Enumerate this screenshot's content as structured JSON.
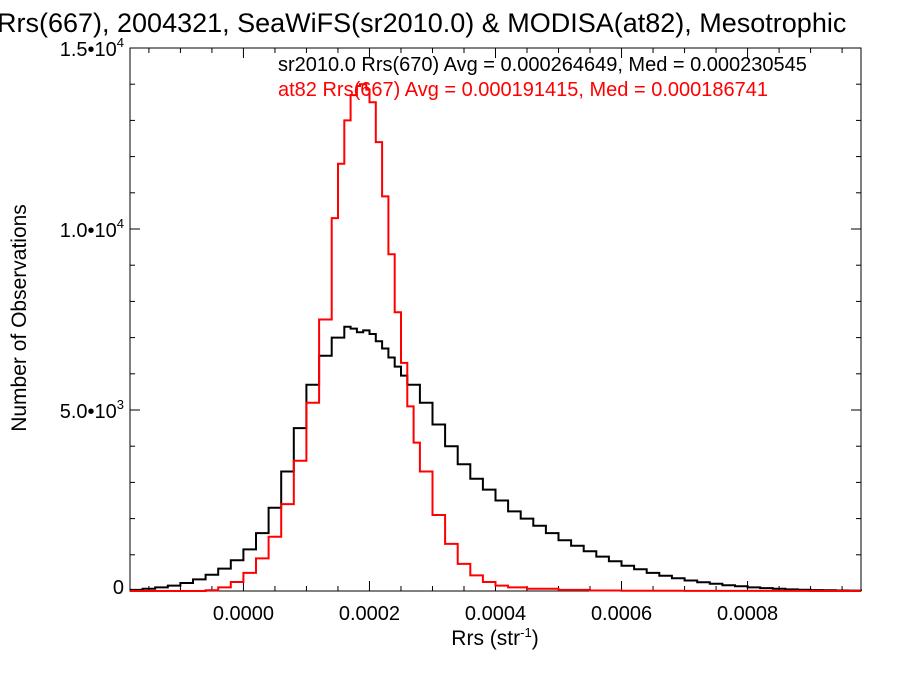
{
  "chart_data": {
    "type": "line",
    "step": true,
    "title": "Rrs(667), 2004321, SeaWiFS(sr2010.0) & MODISA(at82), Mesotrophic",
    "xlabel": "Rrs (str",
    "xlabel_sup": "-1",
    "xlabel_end": ")",
    "ylabel": "Number of Observations",
    "xlim": [
      -0.00018,
      0.00098
    ],
    "ylim": [
      0,
      15000
    ],
    "x_ticks": [
      {
        "value": 0.0,
        "label": "0.0000"
      },
      {
        "value": 0.0002,
        "label": "0.0002"
      },
      {
        "value": 0.0004,
        "label": "0.0004"
      },
      {
        "value": 0.0006,
        "label": "0.0006"
      },
      {
        "value": 0.0008,
        "label": "0.0008"
      }
    ],
    "x_minor_step": 5e-05,
    "y_ticks": [
      {
        "value": 0,
        "mant": "0",
        "exp": ""
      },
      {
        "value": 5000,
        "mant": "5.0•10",
        "exp": "3"
      },
      {
        "value": 10000,
        "mant": "1.0•10",
        "exp": "4"
      },
      {
        "value": 15000,
        "mant": "1.5•10",
        "exp": "4"
      }
    ],
    "y_minor_step": 1000,
    "annotations": [
      {
        "text": "sr2010.0 Rrs(670) Avg = 0.000264649, Med = 0.000230545",
        "color": "#000000"
      },
      {
        "text": "at82 Rrs(667) Avg = 0.000191415, Med = 0.000186741",
        "color": "#ff0000"
      }
    ],
    "series": [
      {
        "color": "#000000",
        "x": [
          -0.00018,
          -0.00016,
          -0.00014,
          -0.00012,
          -0.0001,
          -8e-05,
          -6e-05,
          -4e-05,
          -2e-05,
          0.0,
          2e-05,
          4e-05,
          6e-05,
          8e-05,
          0.0001,
          0.00012,
          0.00014,
          0.00016,
          0.00017,
          0.00018,
          0.00019,
          0.0002,
          0.00021,
          0.00022,
          0.00023,
          0.00024,
          0.00025,
          0.00026,
          0.00028,
          0.0003,
          0.00032,
          0.00034,
          0.00036,
          0.00038,
          0.0004,
          0.00042,
          0.00044,
          0.00046,
          0.00048,
          0.0005,
          0.00052,
          0.00054,
          0.00056,
          0.00058,
          0.0006,
          0.00062,
          0.00064,
          0.00066,
          0.00068,
          0.0007,
          0.00072,
          0.00074,
          0.00076,
          0.00078,
          0.0008,
          0.00082,
          0.00084,
          0.00086,
          0.00088,
          0.0009,
          0.00092,
          0.00094,
          0.00096,
          0.00098
        ],
        "y": [
          30,
          60,
          100,
          150,
          220,
          320,
          450,
          620,
          850,
          1150,
          1600,
          2300,
          3300,
          4500,
          5700,
          6500,
          7000,
          7300,
          7250,
          7150,
          7200,
          7100,
          6900,
          6700,
          6450,
          6200,
          5950,
          5700,
          5200,
          4600,
          4000,
          3500,
          3100,
          2800,
          2500,
          2200,
          2000,
          1800,
          1600,
          1400,
          1250,
          1100,
          950,
          820,
          700,
          600,
          500,
          420,
          350,
          290,
          240,
          200,
          160,
          130,
          100,
          80,
          60,
          45,
          35,
          25,
          20,
          15,
          10,
          8
        ]
      },
      {
        "color": "#ff0000",
        "x": [
          -0.00018,
          -0.00012,
          -8e-05,
          -6e-05,
          -4e-05,
          -2e-05,
          0.0,
          2e-05,
          4e-05,
          6e-05,
          8e-05,
          0.0001,
          0.00012,
          0.00014,
          0.00015,
          0.00016,
          0.00017,
          0.00018,
          0.000185,
          0.00019,
          0.000195,
          0.0002,
          0.00021,
          0.00022,
          0.00023,
          0.00024,
          0.00025,
          0.00026,
          0.00027,
          0.00028,
          0.0003,
          0.00032,
          0.00034,
          0.00036,
          0.00038,
          0.0004,
          0.00042,
          0.00045,
          0.0005,
          0.00055,
          0.0006,
          0.0007,
          0.0008,
          0.0009,
          0.00098
        ],
        "y": [
          0,
          0,
          0,
          20,
          100,
          250,
          500,
          900,
          1500,
          2400,
          3600,
          5200,
          7500,
          10300,
          11800,
          13000,
          13700,
          13950,
          14000,
          14000,
          13850,
          13500,
          12400,
          10900,
          9300,
          7700,
          6300,
          5100,
          4100,
          3300,
          2100,
          1300,
          750,
          430,
          250,
          150,
          100,
          60,
          30,
          15,
          8,
          4,
          2,
          1,
          0
        ]
      }
    ]
  }
}
